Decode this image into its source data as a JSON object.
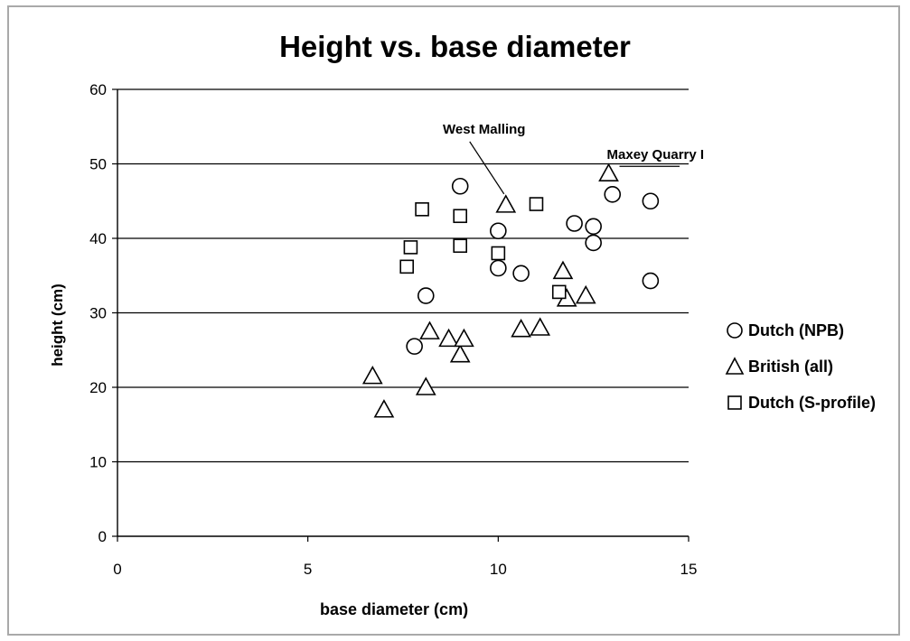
{
  "chart_data": {
    "type": "scatter",
    "title": "Height vs. base diameter",
    "xlabel": "base diameter (cm)",
    "ylabel": "height (cm)",
    "xlim": [
      0,
      15
    ],
    "ylim": [
      0,
      60
    ],
    "x_ticks": [
      "0",
      "5",
      "10",
      "15"
    ],
    "y_ticks": [
      "0",
      "10",
      "20",
      "30",
      "40",
      "50",
      "60"
    ],
    "grid": "horizontal",
    "legend_position": "right",
    "series": [
      {
        "name": "Dutch (NPB)",
        "marker": "circle",
        "points": [
          [
            8.1,
            32.3
          ],
          [
            7.8,
            25.5
          ],
          [
            9.0,
            47.0
          ],
          [
            10.0,
            41.0
          ],
          [
            10.0,
            36.0
          ],
          [
            10.6,
            35.3
          ],
          [
            12.0,
            42.0
          ],
          [
            12.5,
            41.6
          ],
          [
            12.5,
            39.4
          ],
          [
            13.0,
            45.9
          ],
          [
            14.0,
            45.0
          ],
          [
            14.0,
            34.3
          ]
        ]
      },
      {
        "name": "British (all)",
        "marker": "triangle",
        "points": [
          [
            6.7,
            21.5
          ],
          [
            7.0,
            17.0
          ],
          [
            8.1,
            20.0
          ],
          [
            8.2,
            27.5
          ],
          [
            8.7,
            26.5
          ],
          [
            9.0,
            24.4
          ],
          [
            9.1,
            26.5
          ],
          [
            10.2,
            44.5
          ],
          [
            10.6,
            27.8
          ],
          [
            11.1,
            28.0
          ],
          [
            11.7,
            35.6
          ],
          [
            11.8,
            31.9
          ],
          [
            12.3,
            32.3
          ],
          [
            12.9,
            48.7
          ]
        ]
      },
      {
        "name": "Dutch (S-profile)",
        "marker": "square",
        "points": [
          [
            7.6,
            36.2
          ],
          [
            7.7,
            38.8
          ],
          [
            8.0,
            43.9
          ],
          [
            9.0,
            43.0
          ],
          [
            9.0,
            39.0
          ],
          [
            10.0,
            38.0
          ],
          [
            11.0,
            44.6
          ],
          [
            11.6,
            32.8
          ]
        ]
      }
    ],
    "annotations": [
      {
        "text": "West Malling",
        "x": 10.2,
        "y": 44.5
      },
      {
        "text": "Maxey Quarry I",
        "x": 12.9,
        "y": 48.7
      }
    ]
  }
}
